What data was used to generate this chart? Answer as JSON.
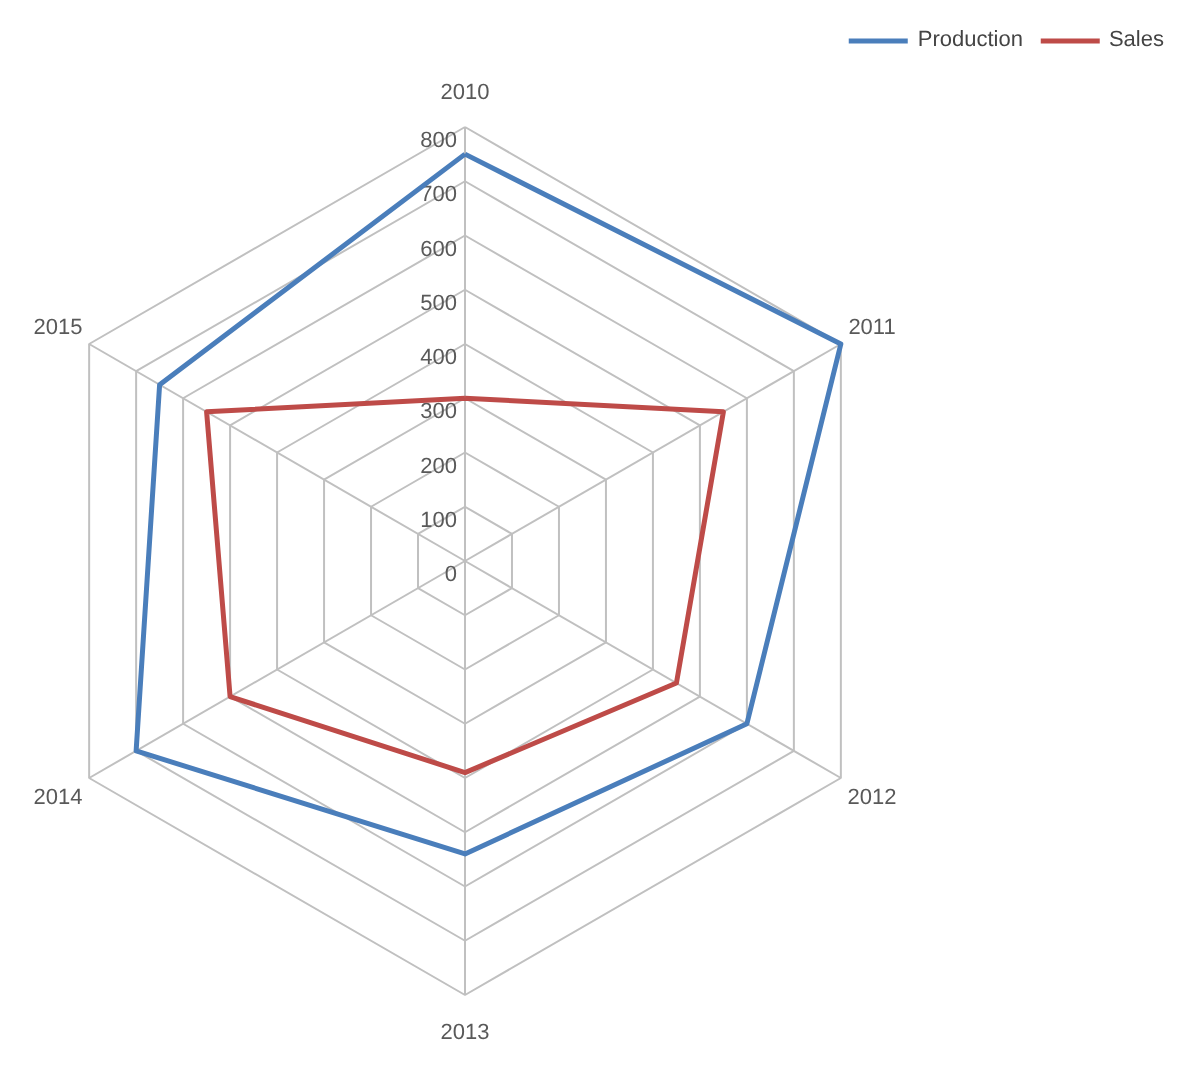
{
  "chart_data": {
    "type": "radar",
    "categories": [
      "2010",
      "2011",
      "2012",
      "2013",
      "2014",
      "2015"
    ],
    "series": [
      {
        "name": "Production",
        "color": "#4a7ebb",
        "values": [
          750,
          800,
          600,
          540,
          700,
          650
        ]
      },
      {
        "name": "Sales",
        "color": "#be4b48",
        "values": [
          300,
          550,
          450,
          390,
          500,
          550
        ]
      }
    ],
    "ylim": [
      0,
      800
    ],
    "yticks": [
      0,
      100,
      200,
      300,
      400,
      500,
      600,
      700,
      800
    ],
    "grid": true,
    "legend": "top right",
    "line_style": "solid",
    "marker": "none"
  }
}
